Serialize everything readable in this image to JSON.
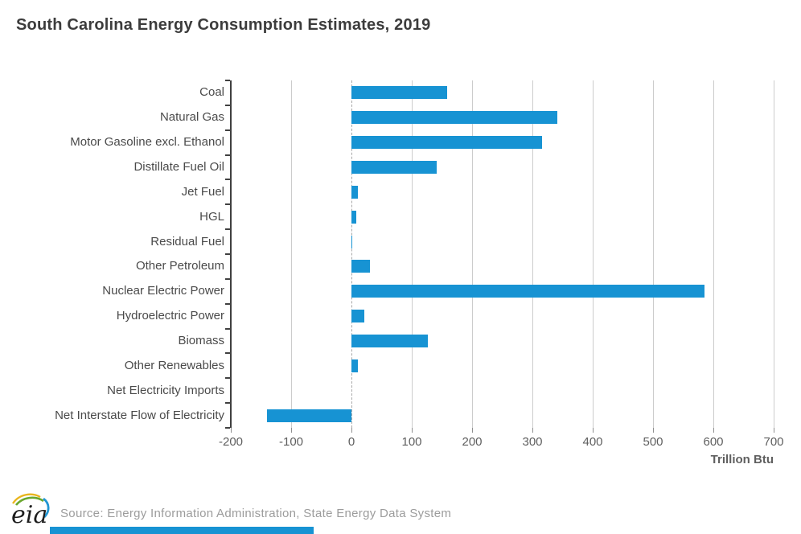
{
  "page": {
    "title": "South Carolina Energy Consumption Estimates, 2019",
    "source_note": "Source: Energy Information Administration, State Energy Data System",
    "logo_text": "eia",
    "accent_color": "#1793d3",
    "axis_color": "#404040",
    "grid_color": "#cccccc"
  },
  "chart_data": {
    "type": "bar",
    "orientation": "horizontal",
    "title": "South Carolina Energy Consumption Estimates, 2019",
    "categories": [
      "Coal",
      "Natural Gas",
      "Motor Gasoline excl. Ethanol",
      "Distillate Fuel Oil",
      "Jet Fuel",
      "HGL",
      "Residual Fuel",
      "Other Petroleum",
      "Nuclear Electric Power",
      "Hydroelectric Power",
      "Biomass",
      "Other Renewables",
      "Net Electricity Imports",
      "Net Interstate Flow of Electricity"
    ],
    "values": [
      159,
      341,
      316,
      141,
      10,
      8,
      1,
      31,
      585,
      21,
      127,
      11,
      0,
      -140
    ],
    "xlabel": "Trillion Btu",
    "ylabel": "",
    "xlim": [
      -200,
      700
    ],
    "xticks": [
      -200,
      -100,
      0,
      100,
      200,
      300,
      400,
      500,
      600,
      700
    ],
    "grid": true,
    "legend": false,
    "bar_color": "#1793d3",
    "unit": "Trillion Btu"
  }
}
